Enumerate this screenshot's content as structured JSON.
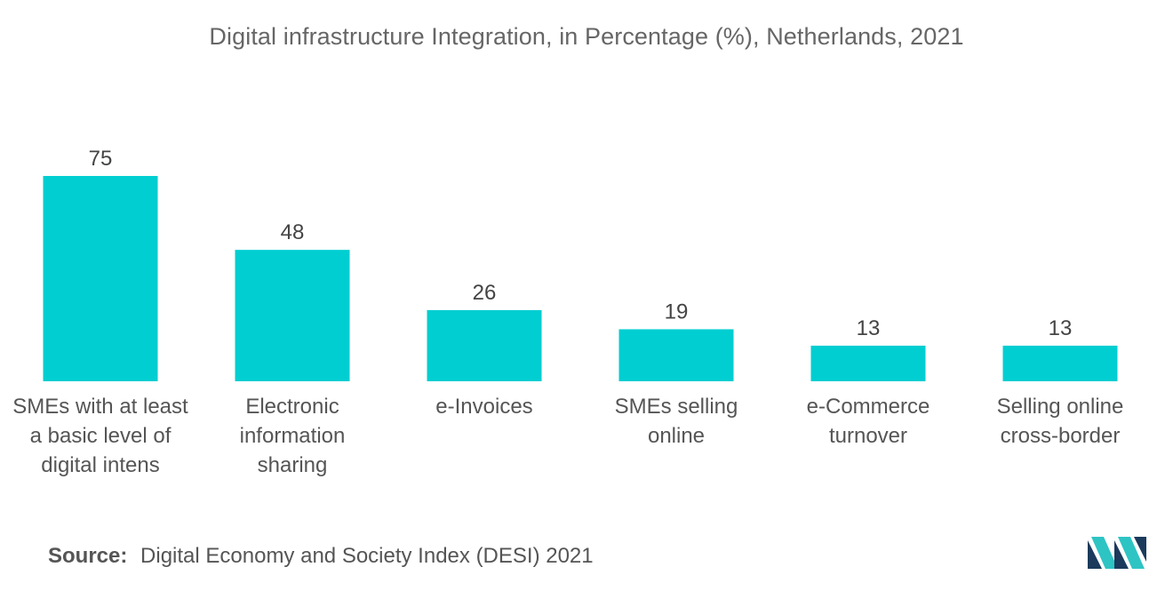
{
  "chart_data": {
    "type": "bar",
    "title": "Digital infrastructure Integration, in Percentage (%), Netherlands, 2021",
    "categories": [
      [
        "SMEs with at least",
        "a basic level of",
        "digital intens"
      ],
      [
        "Electronic",
        "information",
        "sharing"
      ],
      [
        "e-Invoices"
      ],
      [
        "SMEs selling",
        "online"
      ],
      [
        "e-Commerce",
        "turnover"
      ],
      [
        "Selling online",
        "cross-border"
      ]
    ],
    "values": [
      75,
      48,
      26,
      19,
      13,
      13
    ],
    "xlabel": "",
    "ylabel": "",
    "ylim": [
      0,
      75
    ],
    "grid": false,
    "legend": "none",
    "bar_color": "#00CED1"
  },
  "footer": {
    "source_label": "Source:",
    "source_text": "Digital Economy and Society Index (DESI) 2021"
  },
  "logo": {
    "icon": "mordor-intelligence-logo",
    "colors": [
      "#1B3A5C",
      "#2EC4C4"
    ]
  }
}
